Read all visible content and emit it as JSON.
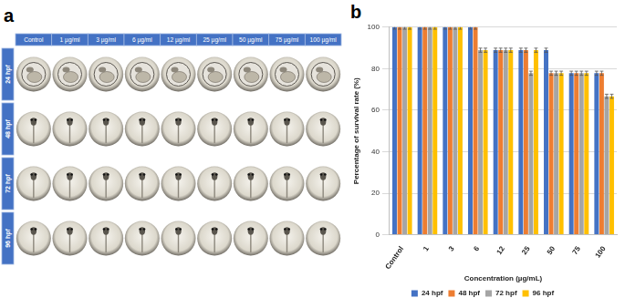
{
  "figure": {
    "panel_a": {
      "label": "a",
      "columns": [
        "Control",
        "1 µg/ml",
        "3 µg/ml",
        "6 µg/ml",
        "12 µg/ml",
        "25 µg/ml",
        "50 µg/ml",
        "75 µg/ml",
        "100 µg/ml"
      ],
      "rows": [
        "24 hpf",
        "48 hpf",
        "72 hpf",
        "96 hpf"
      ]
    },
    "panel_b": {
      "label": "b"
    }
  },
  "chart_data": {
    "type": "bar",
    "x_label": "Concentration (µg/mL)",
    "y_label": "Percentage of survival rate (%)",
    "categories": [
      "Control",
      "1",
      "3",
      "6",
      "12",
      "25",
      "50",
      "75",
      "100"
    ],
    "series": [
      {
        "name": "24 hpf",
        "color": "#4472c4",
        "values": [
          100,
          100,
          100,
          100,
          88.9,
          88.9,
          88.9,
          77.8,
          77.8
        ],
        "errors": [
          1,
          1,
          1,
          1,
          1,
          1,
          1,
          1,
          1
        ]
      },
      {
        "name": "48 hpf",
        "color": "#ed7d31",
        "values": [
          100,
          100,
          100,
          100,
          88.9,
          88.9,
          77.8,
          77.8,
          77.8
        ],
        "errors": [
          1,
          1,
          1,
          1,
          1,
          1,
          1,
          1,
          1
        ]
      },
      {
        "name": "72 hpf",
        "color": "#a5a5a5",
        "values": [
          100,
          100,
          100,
          88.9,
          88.9,
          77.8,
          77.8,
          77.8,
          66.7
        ],
        "errors": [
          1,
          1,
          1,
          1,
          1,
          1,
          1,
          1,
          1
        ]
      },
      {
        "name": "96 hpf",
        "color": "#ffc000",
        "values": [
          100,
          100,
          100,
          88.9,
          88.9,
          88.9,
          77.8,
          77.8,
          66.7
        ],
        "errors": [
          1,
          1,
          1,
          1,
          1,
          1,
          1,
          1,
          1
        ]
      }
    ],
    "ylim": [
      0,
      100
    ],
    "yticks": [
      0,
      20,
      40,
      60,
      80,
      100
    ],
    "grid": true,
    "legend": "bottom"
  }
}
